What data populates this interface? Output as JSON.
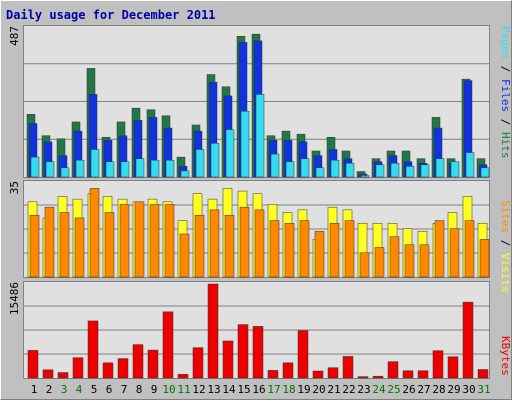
{
  "colors": {
    "frame_bg": "#C0C0C0",
    "frame_dark": "#808080",
    "frame_light": "#FFFFFF",
    "plot_bg": "#E0E0E0",
    "grid": "#808080",
    "hits": "#227744",
    "files": "#1133DD",
    "pages": "#33DDEE",
    "visits": "#FFFF22",
    "sites": "#FF8800",
    "kbytes": "#EE0000",
    "title": "#0000AA",
    "weekend_label": "#007700",
    "weekday_label": "#000000"
  },
  "chart_data": [
    {
      "type": "bar",
      "title": "Daily usage for December 2011",
      "ylabel_parts": [
        "Pages",
        "Files",
        "Hits"
      ],
      "y_max_label": "487",
      "ylim": [
        0,
        487
      ],
      "categories": [
        "1",
        "2",
        "3",
        "4",
        "5",
        "6",
        "7",
        "8",
        "9",
        "10",
        "11",
        "12",
        "13",
        "14",
        "15",
        "16",
        "17",
        "18",
        "19",
        "20",
        "21",
        "22",
        "23",
        "24",
        "25",
        "26",
        "27",
        "28",
        "29",
        "30",
        "31"
      ],
      "weekend_days": [
        "3",
        "4",
        "10",
        "11",
        "17",
        "18",
        "24",
        "25",
        "31"
      ],
      "series": [
        {
          "name": "Hits",
          "values": [
            205,
            135,
            125,
            180,
            355,
            130,
            180,
            225,
            220,
            200,
            65,
            170,
            335,
            295,
            460,
            467,
            135,
            150,
            140,
            85,
            130,
            85,
            18,
            60,
            85,
            85,
            60,
            195,
            60,
            320,
            60
          ]
        },
        {
          "name": "Files",
          "values": [
            175,
            115,
            70,
            150,
            270,
            120,
            135,
            185,
            195,
            160,
            35,
            150,
            310,
            265,
            440,
            445,
            120,
            120,
            115,
            70,
            90,
            60,
            10,
            50,
            70,
            50,
            45,
            160,
            45,
            315,
            40
          ]
        },
        {
          "name": "Pages",
          "values": [
            65,
            50,
            30,
            55,
            90,
            50,
            50,
            60,
            55,
            55,
            20,
            90,
            110,
            155,
            215,
            270,
            75,
            50,
            60,
            30,
            55,
            45,
            5,
            40,
            45,
            35,
            40,
            60,
            50,
            80,
            30
          ]
        }
      ]
    },
    {
      "type": "bar",
      "ylabel_parts": [
        "Sites",
        "Visits"
      ],
      "y_max_label": "35",
      "ylim": [
        0,
        35
      ],
      "categories": [
        "1",
        "2",
        "3",
        "4",
        "5",
        "6",
        "7",
        "8",
        "9",
        "10",
        "11",
        "12",
        "13",
        "14",
        "15",
        "16",
        "17",
        "18",
        "19",
        "20",
        "21",
        "22",
        "23",
        "24",
        "25",
        "26",
        "27",
        "28",
        "29",
        "30",
        "31"
      ],
      "series": [
        {
          "name": "Visits",
          "values": [
            28,
            22,
            30,
            29,
            31,
            30,
            29,
            28,
            29,
            28,
            21,
            31,
            29,
            33,
            32,
            31,
            27,
            24,
            25,
            14,
            26,
            25,
            20,
            20,
            20,
            18,
            17,
            20,
            24,
            30,
            20
          ]
        },
        {
          "name": "Sites",
          "values": [
            23,
            26,
            24,
            22,
            33,
            24,
            27,
            28,
            27,
            27,
            16,
            23,
            25,
            23,
            26,
            25,
            21,
            20,
            21,
            17,
            20,
            21,
            9,
            11,
            15,
            12,
            12,
            21,
            18,
            21,
            14
          ]
        }
      ]
    },
    {
      "type": "bar",
      "ylabel_parts": [
        "KBytes"
      ],
      "y_max_label": "15486",
      "ylim": [
        0,
        15486
      ],
      "categories": [
        "1",
        "2",
        "3",
        "4",
        "5",
        "6",
        "7",
        "8",
        "9",
        "10",
        "11",
        "12",
        "13",
        "14",
        "15",
        "16",
        "17",
        "18",
        "19",
        "20",
        "21",
        "22",
        "23",
        "24",
        "25",
        "26",
        "27",
        "28",
        "29",
        "30",
        "31"
      ],
      "series": [
        {
          "name": "KBytes",
          "values": [
            4550,
            1350,
            900,
            3350,
            9400,
            2500,
            3200,
            5500,
            4600,
            10900,
            600,
            5000,
            15486,
            6100,
            8800,
            8500,
            1250,
            2500,
            7800,
            1150,
            1700,
            3550,
            230,
            300,
            2700,
            1200,
            1200,
            4500,
            3500,
            12500,
            1400
          ]
        }
      ]
    }
  ]
}
